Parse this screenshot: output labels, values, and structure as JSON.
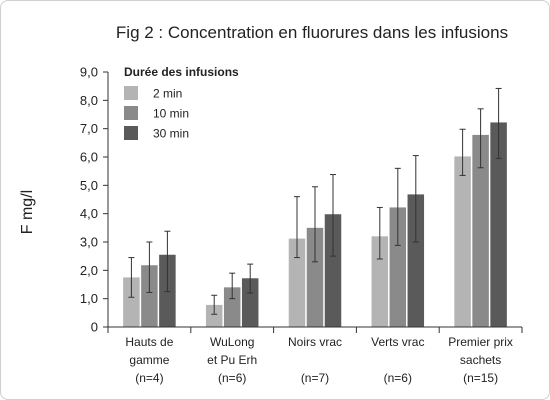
{
  "chart_data": {
    "type": "bar",
    "title": "Fig 2 : Concentration en fluorures dans les infusions",
    "ylabel": "F mg/l",
    "xlabel": "",
    "ylim": [
      0,
      9
    ],
    "yticks": [
      "0",
      "1,0",
      "2,0",
      "3,0",
      "4,0",
      "5,0",
      "6,0",
      "7,0",
      "8,0",
      "9,0"
    ],
    "categories": [
      [
        "Hauts de",
        "gamme",
        "(n=4)"
      ],
      [
        "WuLong",
        "et Pu Erh",
        "(n=6)"
      ],
      [
        "Noirs vrac",
        "",
        "(n=7)"
      ],
      [
        "Verts  vrac",
        "",
        "(n=6)"
      ],
      [
        "Premier prix",
        "sachets",
        "(n=15)"
      ]
    ],
    "legend": {
      "title": "Durée des infusions",
      "position": "top-left"
    },
    "series": [
      {
        "name": "2 min",
        "color": "#b4b4b4",
        "values": [
          1.75,
          0.78,
          3.12,
          3.2,
          6.02
        ],
        "err_low": [
          1.05,
          0.45,
          2.45,
          2.4,
          5.35
        ],
        "err_high": [
          2.45,
          1.12,
          4.6,
          4.22,
          6.98
        ]
      },
      {
        "name": "10 min",
        "color": "#8a8a8a",
        "values": [
          2.18,
          1.4,
          3.5,
          4.22,
          6.78
        ],
        "err_low": [
          1.22,
          1.0,
          2.3,
          2.88,
          5.62
        ],
        "err_high": [
          3.0,
          1.9,
          4.95,
          5.6,
          7.7
        ]
      },
      {
        "name": "30 min",
        "color": "#5a5a5a",
        "values": [
          2.55,
          1.72,
          3.98,
          4.68,
          7.22
        ],
        "err_low": [
          1.25,
          1.2,
          2.5,
          3.0,
          5.95
        ],
        "err_high": [
          3.38,
          2.22,
          5.38,
          6.05,
          8.42
        ]
      }
    ],
    "grid": false
  }
}
